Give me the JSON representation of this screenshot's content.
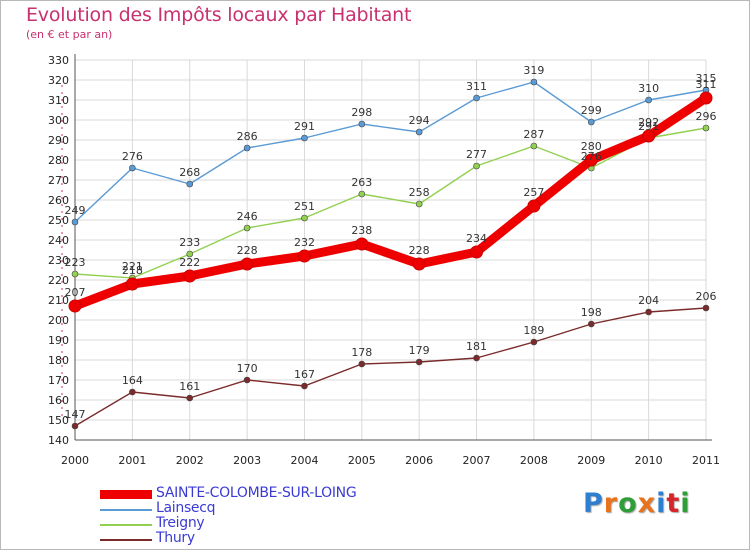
{
  "chart_data": {
    "type": "line",
    "title": "Evolution des Impôts locaux par Habitant",
    "subtitle": "(en € et par an)",
    "xlabel": "",
    "ylabel": "",
    "x": [
      2000,
      2001,
      2002,
      2003,
      2004,
      2005,
      2006,
      2007,
      2008,
      2009,
      2010,
      2011
    ],
    "ylim": [
      140,
      330
    ],
    "y_ticks": [
      140,
      150,
      160,
      170,
      180,
      190,
      200,
      210,
      220,
      230,
      240,
      250,
      260,
      270,
      280,
      290,
      300,
      310,
      320,
      330
    ],
    "grid": true,
    "legend_position": "bottom-left",
    "series": [
      {
        "name": "Lainsecq",
        "color": "#5b9bd5",
        "values": [
          249,
          276,
          268,
          286,
          291,
          298,
          294,
          311,
          319,
          299,
          310,
          315
        ]
      },
      {
        "name": "Treigny",
        "color": "#92d050",
        "values": [
          223,
          221,
          233,
          246,
          251,
          263,
          258,
          277,
          287,
          276,
          291,
          296
        ]
      },
      {
        "name": "Thury",
        "color": "#7b2b2b",
        "values": [
          147,
          164,
          161,
          170,
          167,
          178,
          179,
          181,
          189,
          198,
          204,
          206
        ]
      },
      {
        "name": "SAINTE-COLOMBE-SUR-LOING",
        "color": "#ee0000",
        "values": [
          207,
          218,
          222,
          228,
          232,
          238,
          228,
          234,
          257,
          280,
          292,
          311
        ]
      }
    ],
    "legend_order": [
      "SAINTE-COLOMBE-SUR-LOING",
      "Lainsecq",
      "Treigny",
      "Thury"
    ]
  },
  "brand": {
    "logo_text": "Proxiti",
    "letter_colors": [
      "#2f7fd1",
      "#e8731c",
      "#2f9e3a",
      "#e8731c",
      "#2f7fd1",
      "#d6262a",
      "#2f9e3a"
    ]
  }
}
